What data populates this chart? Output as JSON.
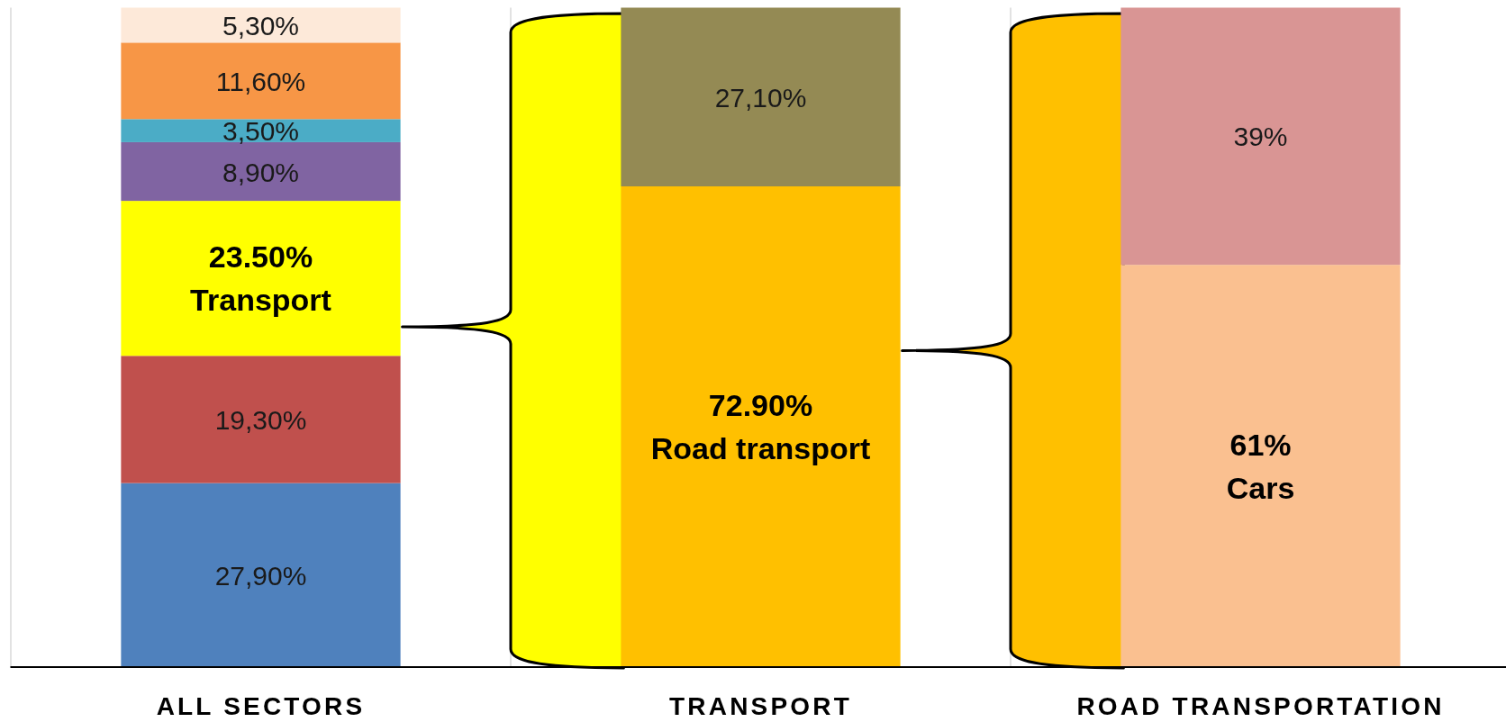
{
  "chart_data": {
    "type": "bar",
    "stacked": true,
    "categories": [
      "ALL SECTORS",
      "TRANSPORT",
      "ROAD TRANSPORTATION"
    ],
    "ylim": [
      0,
      100
    ],
    "tick_labels": "x",
    "grid": "x",
    "series": [
      {
        "color": "#4f81bd",
        "values": [
          27.9,
          null,
          null
        ],
        "value_labels": [
          "27,90%",
          null,
          null
        ]
      },
      {
        "color": "#c0504d",
        "values": [
          19.3,
          null,
          null
        ],
        "value_labels": [
          "19,30%",
          null,
          null
        ]
      },
      {
        "name": "Transport",
        "color": "#ffff00",
        "values": [
          23.5,
          null,
          null
        ],
        "value_labels": [
          "23.50%",
          null,
          null
        ]
      },
      {
        "color": "#8064a2",
        "values": [
          8.9,
          null,
          null
        ],
        "value_labels": [
          "8,90%",
          null,
          null
        ]
      },
      {
        "color": "#4bacc6",
        "values": [
          3.5,
          null,
          null
        ],
        "value_labels": [
          "3,50%",
          null,
          null
        ]
      },
      {
        "color": "#f79646",
        "values": [
          11.6,
          null,
          null
        ],
        "value_labels": [
          "11,60%",
          null,
          null
        ]
      },
      {
        "color": "#fde9d9",
        "values": [
          5.3,
          null,
          null
        ],
        "value_labels": [
          "5,30%",
          null,
          null
        ]
      },
      {
        "name": "Road transport",
        "color": "#ffc000",
        "values": [
          null,
          72.9,
          null
        ],
        "value_labels": [
          null,
          "72.90%",
          null
        ]
      },
      {
        "color": "#948a54",
        "values": [
          null,
          27.1,
          null
        ],
        "value_labels": [
          null,
          "27,10%",
          null
        ]
      },
      {
        "name": "Cars",
        "color": "#fac090",
        "values": [
          null,
          null,
          61
        ],
        "value_labels": [
          null,
          null,
          "61%"
        ]
      },
      {
        "color": "#d99594",
        "values": [
          null,
          null,
          39
        ],
        "value_labels": [
          null,
          null,
          "39%"
        ]
      }
    ]
  }
}
